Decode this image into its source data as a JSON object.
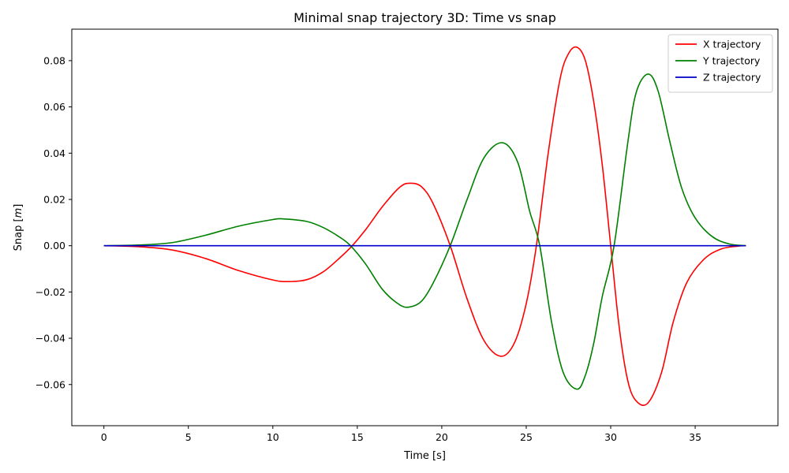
{
  "chart_data": {
    "type": "line",
    "title": "Minimal snap trajectory 3D: Time vs snap",
    "xlabel": "Time [s]",
    "ylabel_main": "Snap [",
    "ylabel_italic": "m",
    "ylabel_end": "]",
    "xlim": [
      -1.9,
      39.9
    ],
    "ylim": [
      -0.0778,
      0.0936
    ],
    "xticks": [
      0,
      5,
      10,
      15,
      20,
      25,
      30,
      35
    ],
    "xtick_labels": [
      "0",
      "5",
      "10",
      "15",
      "20",
      "25",
      "30",
      "35"
    ],
    "yticks": [
      -0.06,
      -0.04,
      -0.02,
      0.0,
      0.02,
      0.04,
      0.06,
      0.08
    ],
    "ytick_labels": [
      "−0.06",
      "−0.04",
      "−0.02",
      "0.00",
      "0.02",
      "0.04",
      "0.06",
      "0.08"
    ],
    "grid": false,
    "legend_position": "top-right",
    "series": [
      {
        "name": "X trajectory",
        "color": "#ff0000",
        "points": [
          [
            0,
            0
          ],
          [
            2,
            -0.0004
          ],
          [
            4,
            -0.0018
          ],
          [
            6,
            -0.0055
          ],
          [
            8,
            -0.0108
          ],
          [
            10,
            -0.0148
          ],
          [
            10.9,
            -0.0155
          ],
          [
            12,
            -0.0147
          ],
          [
            13,
            -0.0112
          ],
          [
            14,
            -0.005
          ],
          [
            14.7,
            0
          ],
          [
            15.5,
            0.007
          ],
          [
            16.5,
            0.017
          ],
          [
            17.5,
            0.0252
          ],
          [
            18.1,
            0.027
          ],
          [
            18.8,
            0.0255
          ],
          [
            19.5,
            0.018
          ],
          [
            20.5,
            0
          ],
          [
            21.5,
            -0.023
          ],
          [
            22.5,
            -0.041
          ],
          [
            23.5,
            -0.0478
          ],
          [
            24.3,
            -0.042
          ],
          [
            25,
            -0.025
          ],
          [
            25.6,
            0
          ],
          [
            26.3,
            0.04
          ],
          [
            27,
            0.072
          ],
          [
            27.5,
            0.083
          ],
          [
            28,
            0.0858
          ],
          [
            28.5,
            0.08
          ],
          [
            29,
            0.062
          ],
          [
            29.5,
            0.035
          ],
          [
            30,
            0
          ],
          [
            30.5,
            -0.035
          ],
          [
            31,
            -0.058
          ],
          [
            31.5,
            -0.067
          ],
          [
            32.2,
            -0.068
          ],
          [
            33,
            -0.055
          ],
          [
            33.7,
            -0.033
          ],
          [
            34.5,
            -0.016
          ],
          [
            35.5,
            -0.006
          ],
          [
            36.5,
            -0.0015
          ],
          [
            37.5,
            -0.0002
          ],
          [
            38,
            0
          ]
        ]
      },
      {
        "name": "Y trajectory",
        "color": "#008000",
        "points": [
          [
            0,
            0
          ],
          [
            2,
            0.0003
          ],
          [
            4,
            0.0013
          ],
          [
            6,
            0.0045
          ],
          [
            8,
            0.0085
          ],
          [
            10,
            0.0113
          ],
          [
            10.6,
            0.0116
          ],
          [
            12,
            0.0105
          ],
          [
            13,
            0.0078
          ],
          [
            14,
            0.0035
          ],
          [
            14.6,
            0
          ],
          [
            15.5,
            -0.008
          ],
          [
            16.5,
            -0.019
          ],
          [
            17.5,
            -0.0255
          ],
          [
            18.1,
            -0.0265
          ],
          [
            18.8,
            -0.024
          ],
          [
            19.5,
            -0.016
          ],
          [
            20.5,
            0
          ],
          [
            21.5,
            0.02
          ],
          [
            22.5,
            0.038
          ],
          [
            23.6,
            0.0445
          ],
          [
            24.5,
            0.036
          ],
          [
            25.2,
            0.015
          ],
          [
            25.8,
            0
          ],
          [
            26.5,
            -0.033
          ],
          [
            27.2,
            -0.055
          ],
          [
            28,
            -0.062
          ],
          [
            28.5,
            -0.056
          ],
          [
            29,
            -0.042
          ],
          [
            29.5,
            -0.022
          ],
          [
            30.2,
            0
          ],
          [
            31,
            0.044
          ],
          [
            31.5,
            0.066
          ],
          [
            32.2,
            0.0742
          ],
          [
            32.8,
            0.067
          ],
          [
            33.5,
            0.045
          ],
          [
            34.2,
            0.025
          ],
          [
            35,
            0.012
          ],
          [
            36,
            0.004
          ],
          [
            37,
            0.0008
          ],
          [
            38,
            0
          ]
        ]
      },
      {
        "name": "Z trajectory",
        "color": "#0000cd",
        "points": [
          [
            0,
            0
          ],
          [
            38,
            0
          ]
        ]
      }
    ]
  }
}
